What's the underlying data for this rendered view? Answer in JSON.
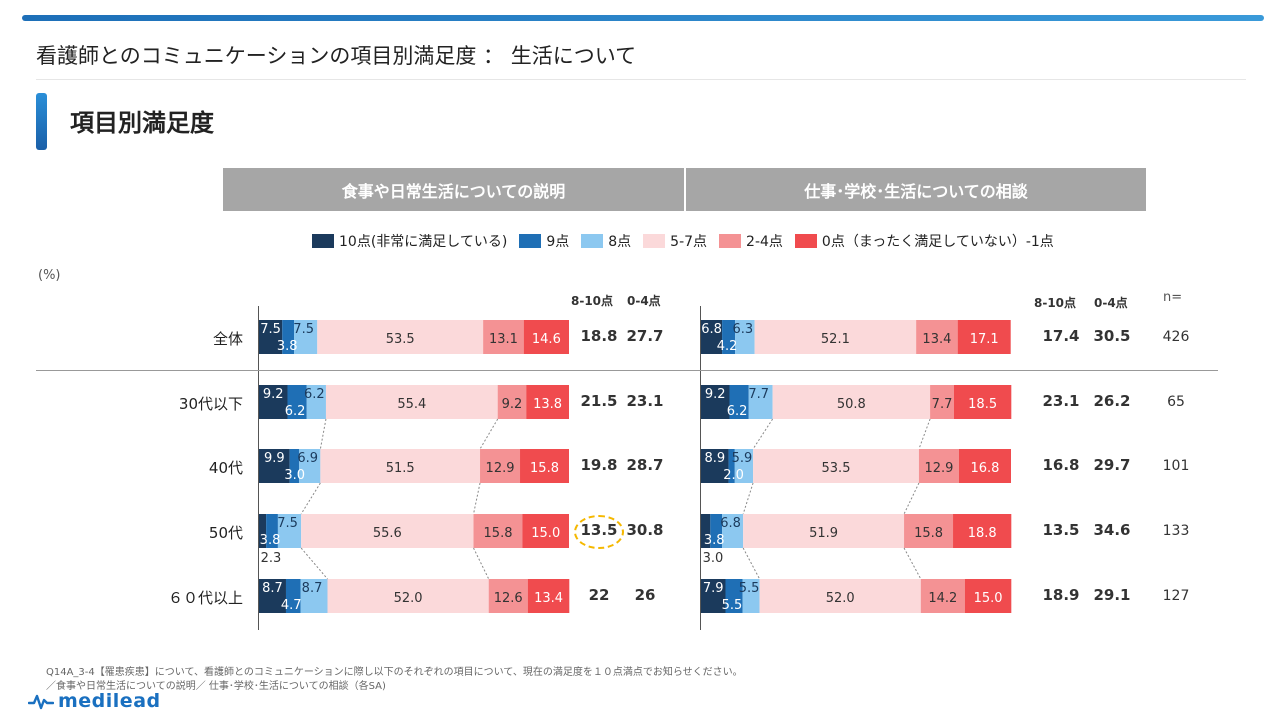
{
  "page_title": "看護師とのコミュニケーションの項目別満足度 ： 生活について",
  "section_title": "項目別満足度",
  "unit_label": "(%)",
  "legend": [
    {
      "label": "10点(非常に満足している)",
      "color": "#1b3a5c"
    },
    {
      "label": "9点",
      "color": "#1f6fb5"
    },
    {
      "label": "8点",
      "color": "#8cc8f0"
    },
    {
      "label": "5-7点",
      "color": "#fbd9da"
    },
    {
      "label": "2-4点",
      "color": "#f49294"
    },
    {
      "label": "0点（まったく満足していない）-1点",
      "color": "#f04b4e"
    }
  ],
  "col_headers": {
    "top": "8-10点",
    "bottom": "0-4点",
    "n": "n="
  },
  "footnote": {
    "line1": "Q14A_3-4【罹患疾患】について、看護師とのコミュニケーションに際し以下のそれぞれの項目について、現在の満足度を１０点満点でお知らせください。",
    "line2": "／食事や日常生活についての説明／ 仕事･学校･生活についての相談（各SA)"
  },
  "logo": "medilead",
  "chart_data": {
    "type": "bar",
    "stacked": true,
    "orientation": "horizontal",
    "unit": "%",
    "categories": [
      "全体",
      "30代以下",
      "40代",
      "50代",
      "６０代以上"
    ],
    "series_names": [
      "10点(非常に満足している)",
      "9点",
      "8点",
      "5-7点",
      "2-4点",
      "0点（まったく満足していない）-1点"
    ],
    "panels": [
      {
        "title": "食事や日常生活についての説明",
        "values": [
          [
            7.5,
            3.8,
            7.5,
            53.5,
            13.1,
            14.6
          ],
          [
            9.2,
            6.2,
            6.2,
            55.4,
            9.2,
            13.8
          ],
          [
            9.9,
            3.0,
            6.9,
            51.5,
            12.9,
            15.8
          ],
          [
            2.3,
            3.8,
            7.5,
            55.6,
            15.8,
            15.0
          ],
          [
            8.7,
            4.7,
            8.7,
            52.0,
            12.6,
            13.4
          ]
        ],
        "top3": [
          18.8,
          21.5,
          19.8,
          13.5,
          22.0
        ],
        "bottom": [
          27.7,
          23.1,
          28.7,
          30.8,
          26.0
        ],
        "highlight_row": 3
      },
      {
        "title": "仕事･学校･生活についての相談",
        "values": [
          [
            6.8,
            4.2,
            6.3,
            52.1,
            13.4,
            17.1
          ],
          [
            9.2,
            6.2,
            7.7,
            50.8,
            7.7,
            18.5
          ],
          [
            8.9,
            2.0,
            5.9,
            53.5,
            12.9,
            16.8
          ],
          [
            3.0,
            3.8,
            6.8,
            51.9,
            15.8,
            18.8
          ],
          [
            7.9,
            5.5,
            5.5,
            52.0,
            14.2,
            15.0
          ]
        ],
        "top3": [
          17.4,
          23.1,
          16.8,
          13.5,
          18.9
        ],
        "bottom": [
          30.5,
          26.2,
          29.7,
          34.6,
          29.1
        ]
      }
    ],
    "n": [
      426,
      65,
      101,
      133,
      127
    ]
  }
}
